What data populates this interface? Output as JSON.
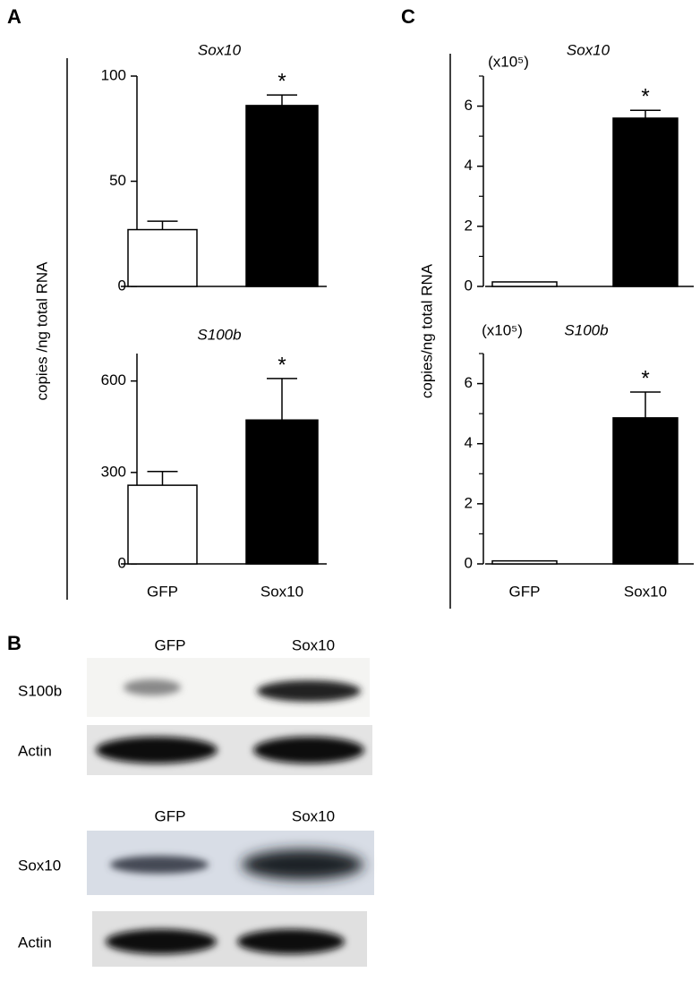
{
  "panel_labels": [
    "A",
    "B",
    "C"
  ],
  "chart_data": [
    {
      "type": "bar",
      "title": "Sox10",
      "ylabel": "copies /ng total RNA",
      "categories": [
        null,
        null
      ],
      "values": [
        27,
        86
      ],
      "errors": [
        4,
        5
      ],
      "colors": [
        "#ffffff",
        "#000000"
      ],
      "annotations": [
        null,
        "*"
      ],
      "ylim": [
        0,
        100
      ],
      "yticks": [
        0,
        50,
        100
      ]
    },
    {
      "type": "bar",
      "title": "S100b",
      "categories": [
        "GFP",
        "Sox10"
      ],
      "values": [
        258,
        472
      ],
      "errors": [
        45,
        136
      ],
      "colors": [
        "#ffffff",
        "#000000"
      ],
      "annotations": [
        null,
        "*"
      ],
      "ylim": [
        0,
        690
      ],
      "yticks": [
        0,
        300,
        600
      ]
    },
    {
      "type": "bar",
      "title": "Sox10",
      "unit_label": "(x10⁵)",
      "ylabel": "copies/ng total RNA",
      "categories": [
        null,
        null
      ],
      "values": [
        0.15,
        5.6
      ],
      "errors": [
        0,
        0.26
      ],
      "colors": [
        "#ffffff",
        "#000000"
      ],
      "annotations": [
        null,
        "*"
      ],
      "ylim": [
        0,
        7
      ],
      "yticks": [
        0,
        2,
        4,
        6
      ],
      "yminorticks": [
        1,
        3,
        5,
        7
      ]
    },
    {
      "type": "bar",
      "title": "S100b",
      "unit_label": "(x10⁵)",
      "categories": [
        "GFP",
        "Sox10"
      ],
      "values": [
        0.1,
        4.86
      ],
      "errors": [
        0,
        0.86
      ],
      "colors": [
        "#ffffff",
        "#000000"
      ],
      "annotations": [
        null,
        "*"
      ],
      "ylim": [
        0,
        7
      ],
      "yticks": [
        0,
        2,
        4,
        6
      ],
      "yminorticks": [
        1,
        3,
        5,
        7
      ]
    }
  ],
  "blots": [
    {
      "lanes": [
        "GFP",
        "Sox10"
      ],
      "rows": [
        "S100b",
        "Actin"
      ]
    },
    {
      "lanes": [
        "GFP",
        "Sox10"
      ],
      "rows": [
        "Sox10",
        "Actin"
      ]
    }
  ]
}
